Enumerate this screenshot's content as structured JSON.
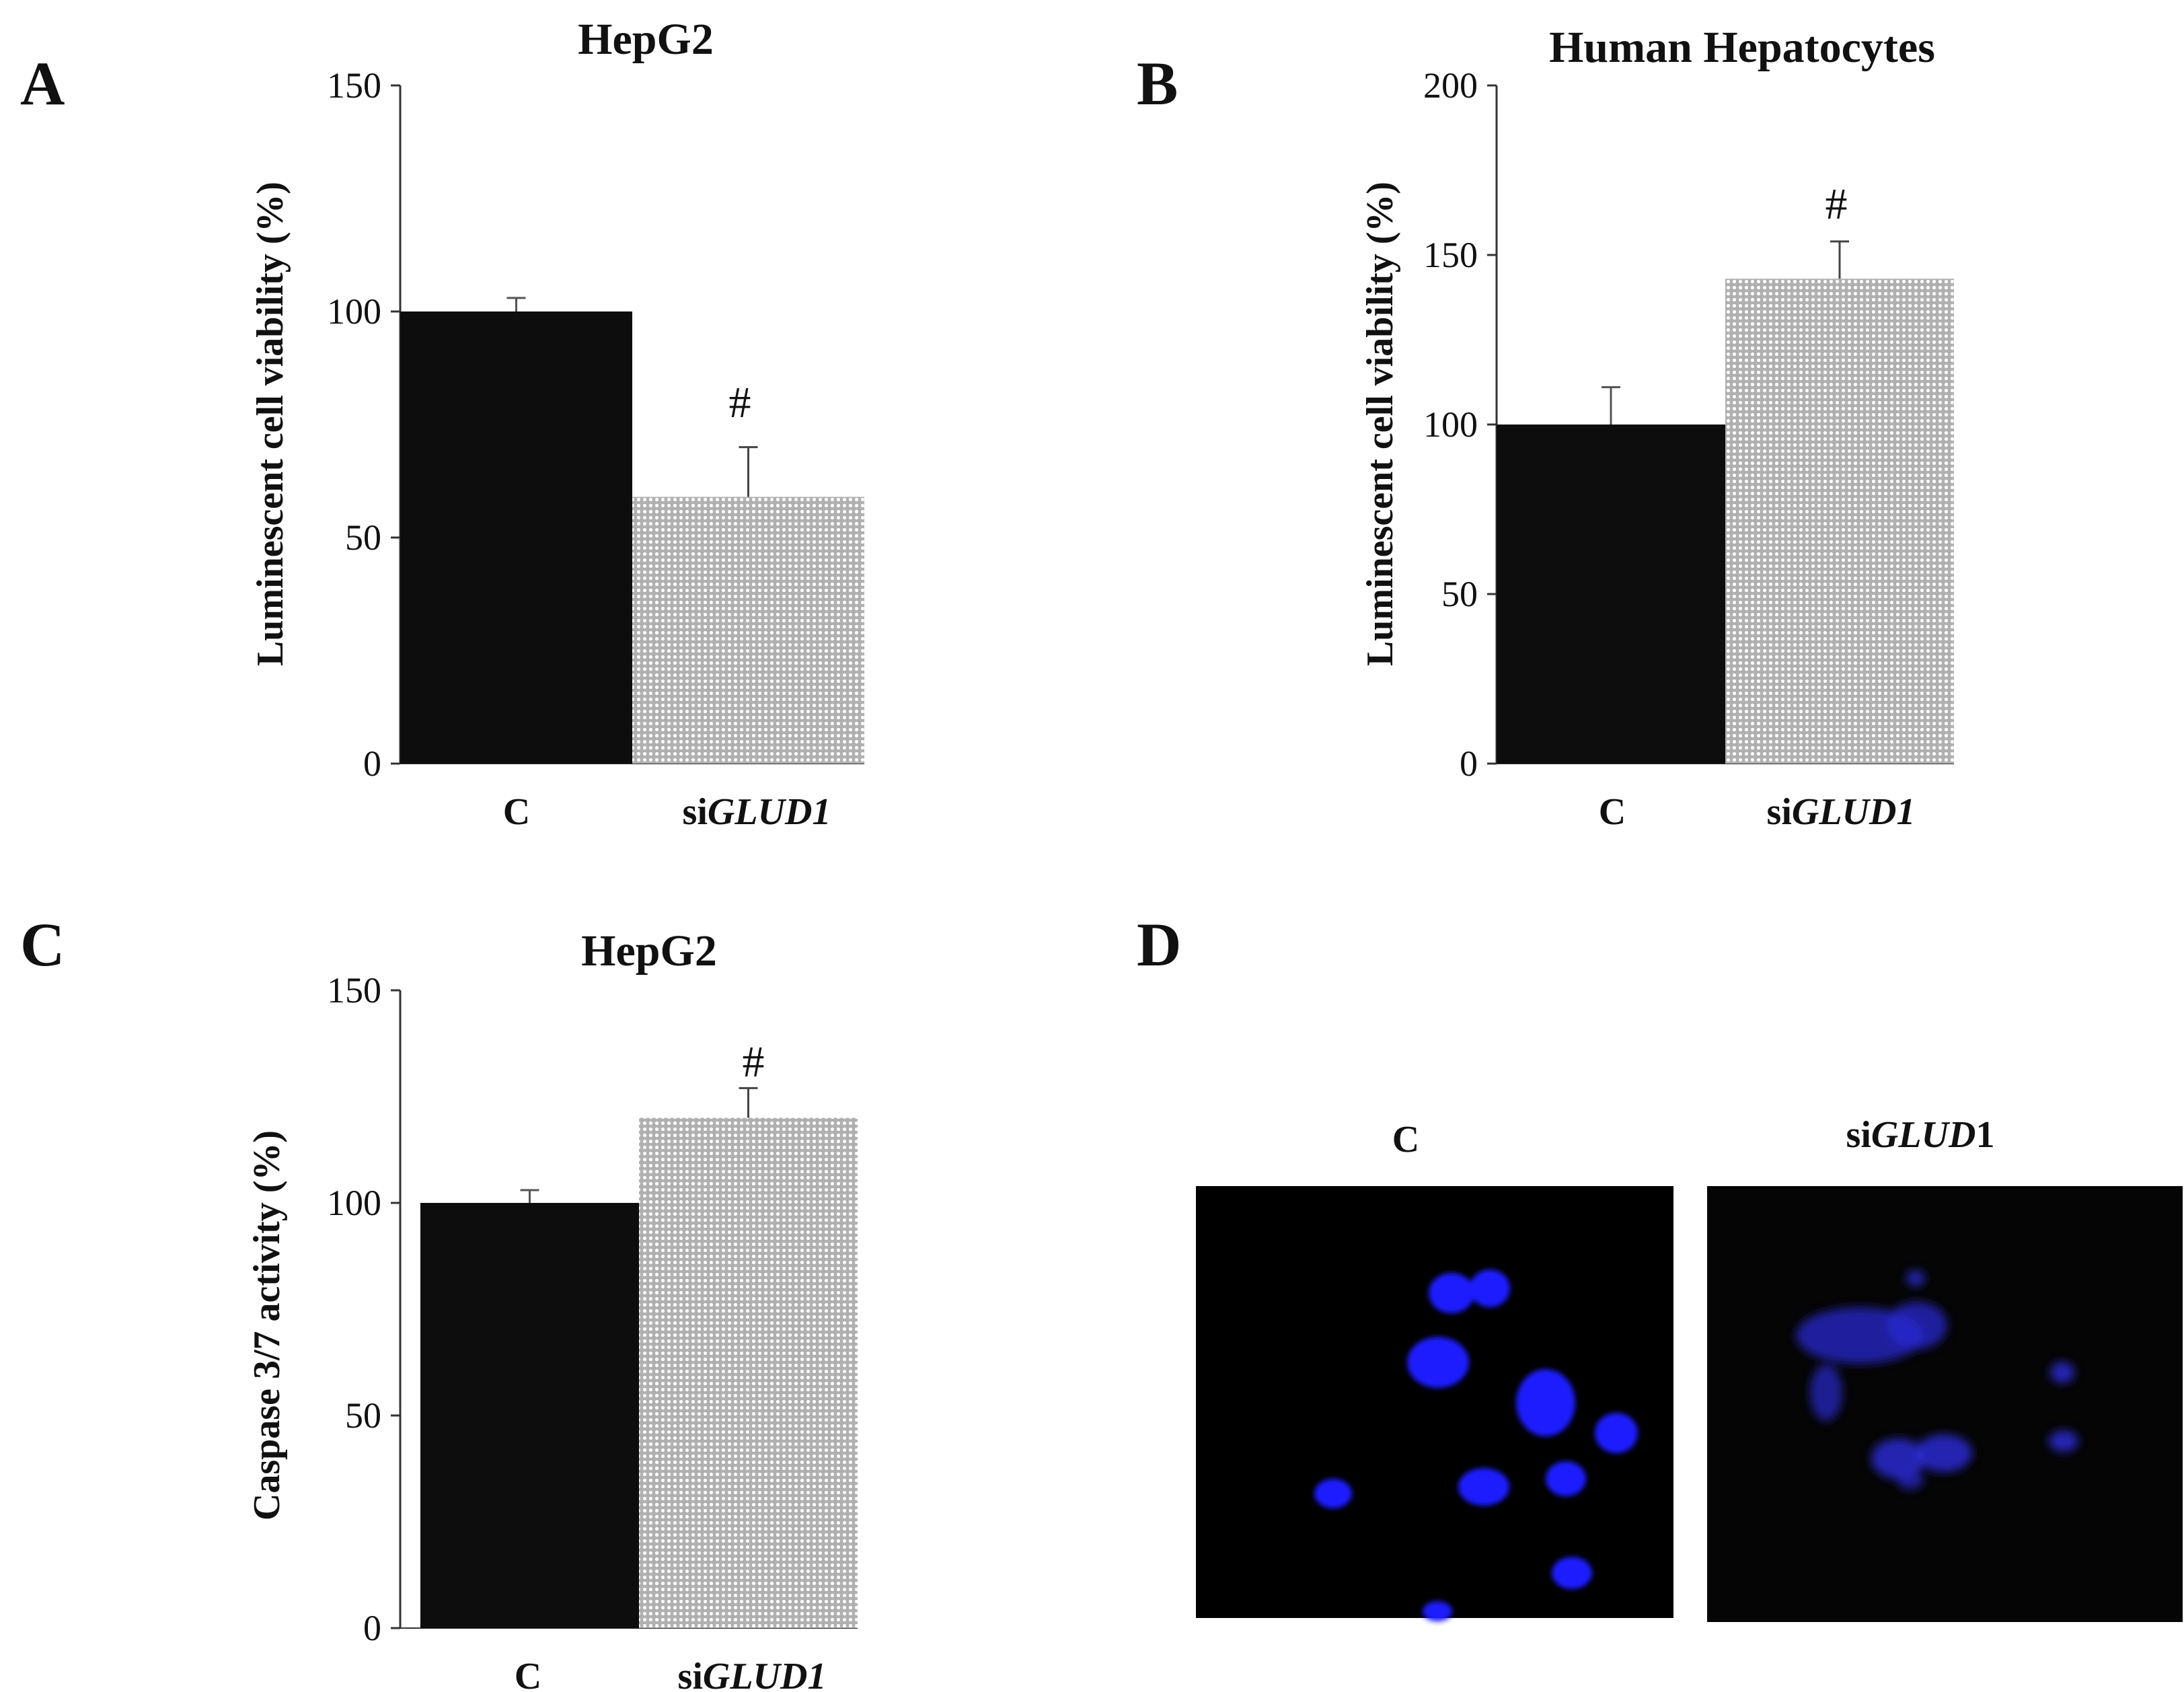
{
  "panels": {
    "A": {
      "letter": "A"
    },
    "B": {
      "letter": "B"
    },
    "C": {
      "letter": "C"
    },
    "D": {
      "letter": "D",
      "images": [
        {
          "label_prefix": "C",
          "label_italic": "",
          "label_suffix": "",
          "bg": "#000000",
          "nucleus_color": "#1a1aff"
        },
        {
          "label_prefix": "si",
          "label_italic": "GLUD",
          "label_suffix": "1",
          "bg": "#050505",
          "nucleus_color": "#2a2ad0"
        }
      ]
    }
  },
  "colors": {
    "control_bar": "#0d0d0d",
    "treated_bar_fill": "#b0b0b0",
    "treated_bar_dots": "#ffffff",
    "axis": "#333333"
  },
  "chart_data": [
    {
      "id": "A",
      "type": "bar",
      "title": "HepG2",
      "ylabel": "Luminescent  cell viability  (%)",
      "xlabel": "",
      "ylim": [
        0,
        150
      ],
      "yticks": [
        0,
        50,
        100,
        150
      ],
      "categories": [
        {
          "prefix": "C",
          "italic": ""
        },
        {
          "prefix": "si",
          "italic": "GLUD1"
        }
      ],
      "values": [
        100,
        59
      ],
      "errors": [
        3,
        11
      ],
      "annotations": [
        "",
        "#"
      ],
      "grid": false
    },
    {
      "id": "B",
      "type": "bar",
      "title": "Human Hepatocytes",
      "ylabel": "Luminescent  cell viability  (%)",
      "xlabel": "",
      "ylim": [
        0,
        200
      ],
      "yticks": [
        0,
        50,
        100,
        150,
        200
      ],
      "categories": [
        {
          "prefix": "C",
          "italic": ""
        },
        {
          "prefix": "si",
          "italic": "GLUD1"
        }
      ],
      "values": [
        100,
        143
      ],
      "errors": [
        11,
        11
      ],
      "annotations": [
        "",
        "#"
      ],
      "grid": false
    },
    {
      "id": "C",
      "type": "bar",
      "title": "HepG2",
      "ylabel": "Caspase 3/7 activity (%)",
      "xlabel": "",
      "ylim": [
        0,
        150
      ],
      "yticks": [
        0,
        50,
        100,
        150
      ],
      "categories": [
        {
          "prefix": "C",
          "italic": ""
        },
        {
          "prefix": "si",
          "italic": "GLUD1"
        }
      ],
      "values": [
        100,
        120
      ],
      "errors": [
        3,
        7
      ],
      "annotations": [
        "",
        "#"
      ],
      "grid": false
    }
  ]
}
